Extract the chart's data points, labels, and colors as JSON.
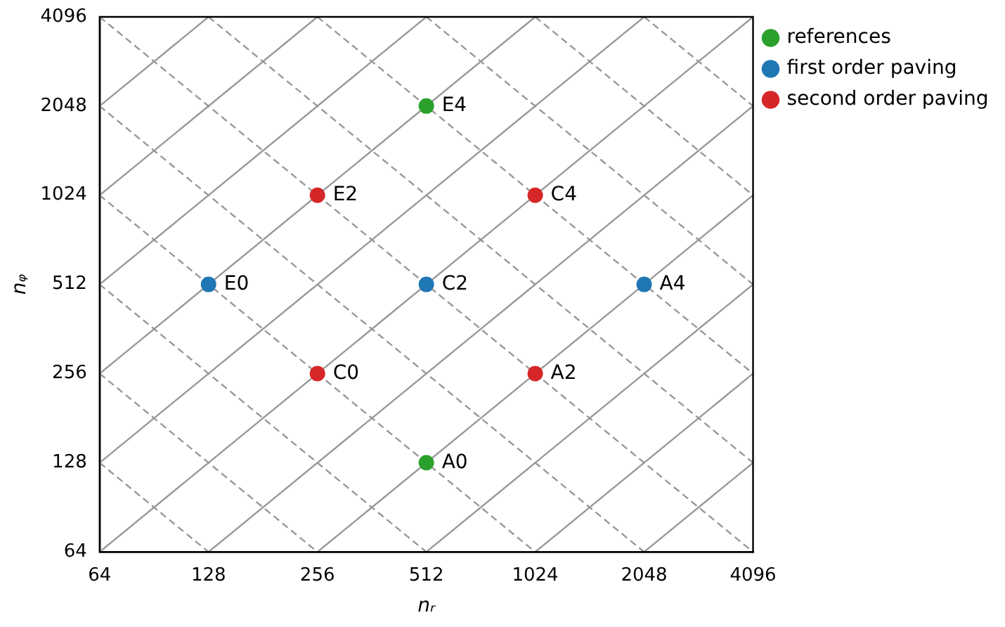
{
  "chart_data": {
    "type": "scatter",
    "xlabel": "nᵣ",
    "ylabel": "nᵩ",
    "log": "xy",
    "xlim": [
      64,
      4096
    ],
    "ylim": [
      64,
      4096
    ],
    "xticks": [
      64,
      128,
      256,
      512,
      1024,
      2048,
      4096
    ],
    "yticks": [
      64,
      128,
      256,
      512,
      1024,
      2048,
      4096
    ],
    "grid": false,
    "legend": "top right",
    "marker": "circle",
    "series": [
      {
        "type": "line",
        "color": "#999999",
        "line_style": "solid",
        "marker": "none",
        "x": [
          2048,
          4096
        ],
        "values": [
          64,
          128
        ]
      },
      {
        "type": "line",
        "color": "#999999",
        "line_style": "solid",
        "marker": "none",
        "x": [
          1024,
          4096
        ],
        "values": [
          64,
          256
        ]
      },
      {
        "type": "line",
        "color": "#999999",
        "line_style": "solid",
        "marker": "none",
        "x": [
          512,
          4096
        ],
        "values": [
          64,
          512
        ]
      },
      {
        "type": "line",
        "color": "#999999",
        "line_style": "solid",
        "marker": "none",
        "x": [
          256,
          4096
        ],
        "values": [
          64,
          1024
        ]
      },
      {
        "type": "line",
        "color": "#999999",
        "line_style": "solid",
        "marker": "none",
        "x": [
          128,
          4096
        ],
        "values": [
          64,
          2048
        ]
      },
      {
        "type": "line",
        "color": "#999999",
        "line_style": "solid",
        "marker": "none",
        "x": [
          64,
          4096
        ],
        "values": [
          64,
          4096
        ]
      },
      {
        "type": "line",
        "color": "#999999",
        "line_style": "solid",
        "marker": "none",
        "x": [
          64,
          2048
        ],
        "values": [
          128,
          4096
        ]
      },
      {
        "type": "line",
        "color": "#999999",
        "line_style": "solid",
        "marker": "none",
        "x": [
          64,
          1024
        ],
        "values": [
          256,
          4096
        ]
      },
      {
        "type": "line",
        "color": "#999999",
        "line_style": "solid",
        "marker": "none",
        "x": [
          64,
          512
        ],
        "values": [
          512,
          4096
        ]
      },
      {
        "type": "line",
        "color": "#999999",
        "line_style": "solid",
        "marker": "none",
        "x": [
          64,
          256
        ],
        "values": [
          1024,
          4096
        ]
      },
      {
        "type": "line",
        "color": "#999999",
        "line_style": "solid",
        "marker": "none",
        "x": [
          64,
          128
        ],
        "values": [
          2048,
          4096
        ]
      },
      {
        "type": "line",
        "color": "#999999",
        "line_style": "dashed",
        "marker": "none",
        "x": [
          64,
          128
        ],
        "values": [
          128,
          64
        ]
      },
      {
        "type": "line",
        "color": "#999999",
        "line_style": "dashed",
        "marker": "none",
        "x": [
          64,
          256
        ],
        "values": [
          256,
          64
        ]
      },
      {
        "type": "line",
        "color": "#999999",
        "line_style": "dashed",
        "marker": "none",
        "x": [
          64,
          512
        ],
        "values": [
          512,
          64
        ]
      },
      {
        "type": "line",
        "color": "#999999",
        "line_style": "dashed",
        "marker": "none",
        "x": [
          64,
          1024
        ],
        "values": [
          1024,
          64
        ]
      },
      {
        "type": "line",
        "color": "#999999",
        "line_style": "dashed",
        "marker": "none",
        "x": [
          64,
          2048
        ],
        "values": [
          2048,
          64
        ]
      },
      {
        "type": "line",
        "color": "#999999",
        "line_style": "dashed",
        "marker": "none",
        "x": [
          64,
          4096
        ],
        "values": [
          4096,
          64
        ]
      },
      {
        "type": "line",
        "color": "#999999",
        "line_style": "dashed",
        "marker": "none",
        "x": [
          128,
          4096
        ],
        "values": [
          4096,
          128
        ]
      },
      {
        "type": "line",
        "color": "#999999",
        "line_style": "dashed",
        "marker": "none",
        "x": [
          256,
          4096
        ],
        "values": [
          4096,
          256
        ]
      },
      {
        "type": "line",
        "color": "#999999",
        "line_style": "dashed",
        "marker": "none",
        "x": [
          512,
          4096
        ],
        "values": [
          4096,
          512
        ]
      },
      {
        "type": "line",
        "color": "#999999",
        "line_style": "dashed",
        "marker": "none",
        "x": [
          1024,
          4096
        ],
        "values": [
          4096,
          1024
        ]
      },
      {
        "type": "line",
        "color": "#999999",
        "line_style": "dashed",
        "marker": "none",
        "x": [
          2048,
          4096
        ],
        "values": [
          4096,
          2048
        ]
      },
      {
        "name": "references",
        "color": "#2ca02c",
        "x": [
          512,
          512
        ],
        "values": [
          2048,
          128
        ]
      },
      {
        "name": "first order paving",
        "color": "#1f77b4",
        "x": [
          128,
          512,
          2048
        ],
        "values": [
          512,
          512,
          512
        ]
      },
      {
        "name": "second order paving",
        "color": "#d62728",
        "x": [
          256,
          1024,
          256,
          1024
        ],
        "values": [
          1024,
          1024,
          256,
          256
        ]
      }
    ],
    "annotations": [
      {
        "text": "E4",
        "x": 512,
        "y": 2048
      },
      {
        "text": "A0",
        "x": 512,
        "y": 128
      },
      {
        "text": "E0",
        "x": 128,
        "y": 512
      },
      {
        "text": "C2",
        "x": 512,
        "y": 512
      },
      {
        "text": "A4",
        "x": 2048,
        "y": 512
      },
      {
        "text": "E2",
        "x": 256,
        "y": 1024
      },
      {
        "text": "C4",
        "x": 1024,
        "y": 1024
      },
      {
        "text": "C0",
        "x": 256,
        "y": 256
      },
      {
        "text": "A2",
        "x": 1024,
        "y": 256
      }
    ]
  }
}
